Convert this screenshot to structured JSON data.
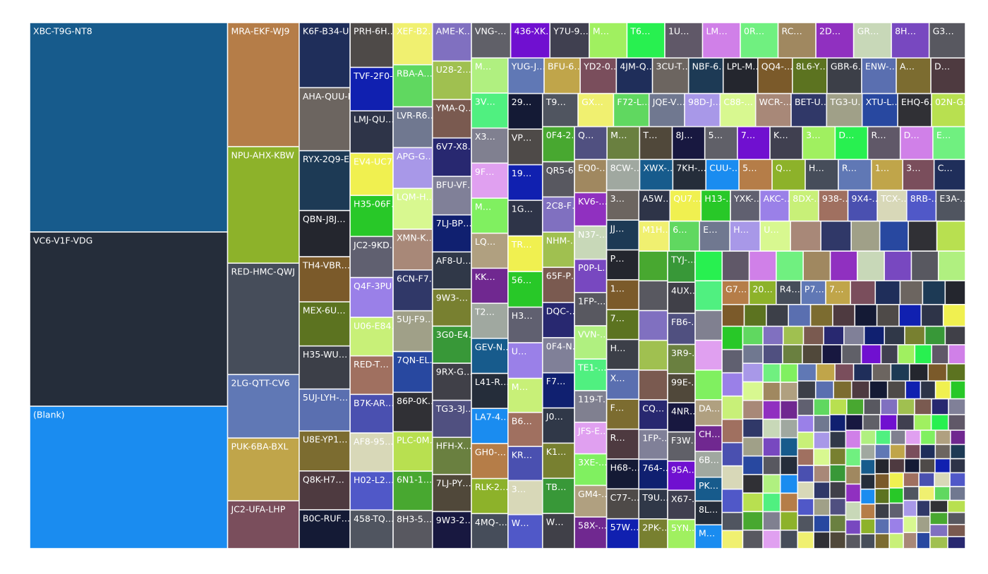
{
  "chart_data": {
    "type": "treemap",
    "categories": [
      "XBC-T9G-NT8",
      "VC6-V1F-VDG",
      "(Blank)",
      "MRA-EKF-WJ9",
      "NPU-AHX-KBW",
      "RED-HMC-QWJ",
      "2LG-QTT-CV6",
      "PUK-6BA-BXL",
      "JC2-UFA-LHP",
      "K6F-B34-UM5",
      "AHA-QUU-KD0",
      "RYX-2Q9-EDW",
      "QBN-J8J…",
      "TH4-VBR…",
      "MEX-6U…",
      "H35-WU…",
      "5UJ-LYH-…",
      "U8E-YP1…",
      "Q8K-H7…",
      "B0C-RUF…",
      "PRH-6H…",
      "TVF-2F0-…",
      "LMJ-QU…",
      "EV4-UC7…",
      "H35-06F…",
      "JC2-9KD…",
      "Q4F-3PU…",
      "U06-E84…",
      "RED-T…",
      "B7K-AR…",
      "AF8-95…",
      "H02-L2…",
      "458-TQ…",
      "XEF-B2…",
      "RBA-A…",
      "LVR-R6…",
      "APG-G…",
      "LQM-H…",
      "XMN-K…",
      "6CN-F7…",
      "5UJ-F9…",
      "7QN-EL…",
      "86P-0K…",
      "PLC-0M…",
      "6N1-1…",
      "8H3-5…",
      "AME-K…",
      "U28-2…",
      "YMA-Q…",
      "6V7-X8…",
      "BFU-VF…",
      "7LJ-BP…",
      "AF8-U…",
      "9W3-…",
      "3G0-E4…",
      "9RX-G…",
      "TG3-3J…",
      "HFH-X…",
      "7LJ-PY…",
      "9W3-2…",
      "VNG-…",
      "436-XK…",
      "Y7U-9…",
      "M…",
      "T6…",
      "1U…",
      "LM…",
      "0R…",
      "RC…",
      "2D…",
      "GR…",
      "8H…",
      "G3…",
      "M…",
      "3V…",
      "X3…",
      "9F…",
      "M…",
      "LQ…",
      "KK…",
      "T2…",
      "GEV-N…",
      "L41-R…",
      "LA7-4…",
      "GH0-…",
      "RLK-2…",
      "4MQ-…",
      "YUG-J…",
      "BFU-6…",
      "YD2-0…",
      "4JM-Q…",
      "3CU-T…",
      "NBF-6…",
      "LPL-M…",
      "QQ4-…",
      "8L6-Y…",
      "GBR-6…",
      "ENW-…",
      "A…",
      "D…",
      "29…",
      "VP…",
      "19…",
      "1G…",
      "TR…",
      "56…",
      "H3…",
      "U…",
      "M…",
      "B6…",
      "KR…",
      "3…",
      "W…",
      "T9…",
      "GX…",
      "F72-L…",
      "JQE-V…",
      "98D-J…",
      "C88-…",
      "WCR-…",
      "BET-U…",
      "TG3-U…",
      "XTU-L…",
      "EHQ-6…",
      "02N-G…",
      "0F4-2…",
      "QR5-6…",
      "2C8-F…",
      "NHM-…",
      "65F-P…",
      "DQC-…",
      "0F4-N…",
      "F7…",
      "J0…",
      "K1…",
      "TB…",
      "W…",
      "Q…",
      "M…",
      "T…",
      "8J…",
      "5…",
      "7…",
      "K…",
      "3…",
      "D…",
      "R…",
      "D…",
      "E…",
      "EQ0-…",
      "KV6-…",
      "N37-…",
      "P0P-L…",
      "1FP-…",
      "VVN-…",
      "TE1-…",
      "119-T…",
      "JFS-E…",
      "3XE-…",
      "GM4-…",
      "58X-…",
      "8CW-…",
      "XWX-…",
      "7KH-…",
      "CUU-…",
      "5…",
      "Q…",
      "H…",
      "R…",
      "1…",
      "3…",
      "C…",
      "3…",
      "JJ…",
      "P…",
      "1…",
      "7…",
      "H…",
      "X…",
      "F…",
      "R…",
      "H68-…",
      "C77-…",
      "57W…",
      "A5W…",
      "QU7…",
      "H13-…",
      "YXK-…",
      "AKC-…",
      "8DX-…",
      "938-…",
      "9X4-…",
      "TCX-…",
      "8RB-…",
      "E3A-…",
      "M1H…",
      "6…",
      "E…",
      "H…",
      "U…",
      null,
      null,
      null,
      null,
      null,
      null,
      null,
      null,
      null,
      null,
      null,
      "CQ…",
      "1FP-…",
      "764-…",
      "T9U…",
      "2PK-…",
      "TYJ-…",
      "4UX…",
      "FB6-…",
      "3R9-…",
      "99E-…",
      "4NR…",
      "F3W…",
      "95A…",
      "X67-…",
      "5YN…",
      null,
      null,
      null,
      null,
      null,
      null,
      null,
      null,
      null,
      null,
      null,
      null,
      null,
      null,
      "DA…",
      "CH…",
      "6B…",
      "PK…",
      "8L…",
      "M…",
      "G7…",
      "20…",
      "R4…",
      "P7…",
      "7…",
      null,
      null,
      null,
      null,
      null,
      null,
      null,
      null,
      null,
      null,
      null,
      null,
      null,
      null,
      null,
      null,
      null,
      null,
      null,
      null,
      null,
      null,
      null,
      null,
      null,
      null,
      null,
      null,
      null,
      null,
      null,
      null,
      null,
      null,
      null,
      null,
      null,
      null,
      null,
      null,
      null,
      null,
      null,
      null,
      null,
      null,
      null,
      null,
      null,
      null,
      null,
      null,
      null,
      null,
      null,
      null,
      null,
      null,
      null,
      null,
      null,
      null,
      null,
      null,
      null,
      null,
      null,
      null,
      null,
      null,
      null,
      null,
      null,
      null,
      null,
      null,
      null,
      null,
      null,
      null,
      null,
      null,
      null,
      null,
      null,
      null,
      null,
      null,
      null,
      null,
      null,
      null,
      null,
      null,
      null,
      null,
      null,
      null,
      null,
      null,
      null,
      null,
      null,
      null,
      null,
      null,
      null,
      null,
      null,
      null,
      null,
      null,
      null,
      null,
      null,
      null,
      null,
      null,
      null,
      null,
      null,
      null,
      null,
      null,
      null,
      null,
      null,
      null,
      null,
      null,
      null,
      null,
      null,
      null,
      null,
      null,
      null,
      null,
      null,
      null,
      null,
      null,
      null,
      null,
      null,
      null,
      null,
      null,
      null,
      null,
      null,
      null,
      null,
      null,
      null,
      null,
      null,
      null,
      null,
      null,
      null,
      null,
      null,
      null,
      null,
      null,
      null,
      null,
      null,
      null,
      null,
      null,
      null,
      null,
      null,
      null,
      null,
      null,
      null,
      null,
      null,
      null,
      null,
      null,
      null,
      null,
      null,
      null,
      null,
      null,
      null,
      null,
      null,
      null,
      null,
      null,
      null,
      null,
      null,
      null,
      null,
      null,
      null,
      null
    ],
    "values": [
      775,
      645,
      527,
      166,
      156,
      149,
      85,
      84,
      64,
      62,
      60,
      57,
      44,
      43,
      42,
      41,
      40,
      38,
      37,
      37,
      36,
      35,
      34,
      34,
      33,
      33,
      32,
      31,
      31,
      31,
      31,
      31,
      31,
      31,
      31,
      30,
      30,
      30,
      30,
      30,
      30,
      30,
      29,
      29,
      29,
      28,
      28,
      28,
      28,
      28,
      28,
      27,
      27,
      27,
      27,
      27,
      27,
      27,
      27,
      27,
      26,
      26,
      26,
      25,
      25,
      25,
      25,
      25,
      25,
      25,
      25,
      25,
      24,
      24,
      24,
      24,
      24,
      24,
      24,
      24,
      24,
      24,
      24,
      24,
      24,
      24,
      24,
      24,
      24,
      24,
      24,
      24,
      23,
      23,
      23,
      23,
      23,
      23,
      23,
      23,
      23,
      23,
      23,
      23,
      23,
      23,
      23,
      23,
      22,
      22,
      22,
      22,
      22,
      22,
      22,
      22,
      22,
      22,
      22,
      22,
      22,
      22,
      22,
      21,
      21,
      21,
      21,
      21,
      21,
      21,
      21,
      21,
      21,
      21,
      21,
      21,
      21,
      20,
      20,
      20,
      20,
      20,
      20,
      20,
      20,
      20,
      20,
      20,
      20,
      20,
      20,
      20,
      20,
      20,
      20,
      19,
      19,
      19,
      19,
      19,
      19,
      19,
      19,
      19,
      19,
      19,
      19,
      19,
      19,
      18,
      18,
      18,
      18,
      18,
      18,
      18,
      18,
      18,
      18,
      18,
      18,
      18,
      18,
      18,
      18,
      18,
      17,
      17,
      17,
      17,
      17,
      17,
      17,
      17,
      17,
      17,
      17,
      17,
      17,
      17,
      17,
      17,
      16,
      16,
      16,
      16,
      16,
      16,
      16,
      16,
      16,
      16,
      16,
      16,
      16,
      16,
      16,
      16,
      16,
      15,
      15,
      15,
      15,
      15,
      15,
      15,
      15,
      15,
      15,
      15,
      15,
      15,
      15,
      15,
      15,
      15,
      15,
      15,
      15,
      15,
      13,
      13,
      13,
      12,
      12,
      12,
      12,
      12,
      11,
      11,
      11,
      11,
      11,
      10,
      10,
      9,
      9,
      9,
      9,
      9,
      9,
      9,
      9,
      9,
      9,
      9,
      9,
      9,
      9,
      9,
      9,
      9,
      9,
      9,
      9,
      7,
      7,
      7,
      7,
      7,
      7,
      7,
      7,
      7,
      7,
      7,
      7,
      7,
      7,
      7,
      7,
      7,
      7,
      7,
      7,
      7,
      7,
      7,
      7,
      7,
      7,
      7,
      7,
      7,
      7,
      6,
      6,
      6,
      6,
      6,
      6,
      6,
      6,
      6,
      6,
      6,
      6,
      6,
      6,
      6,
      6,
      6,
      6,
      6,
      6,
      6,
      6,
      6,
      6,
      6,
      6,
      6,
      6,
      6,
      6,
      6,
      6,
      6,
      6,
      6,
      6,
      6,
      6,
      6,
      6,
      5,
      5,
      5,
      5,
      5,
      5,
      5,
      5,
      5,
      5,
      5,
      5,
      5,
      5,
      5,
      5,
      5,
      5,
      5,
      5,
      5,
      5,
      5,
      5,
      5,
      5,
      5,
      5,
      5,
      5,
      5,
      5,
      5,
      5,
      5,
      5,
      5,
      5,
      5,
      5,
      5,
      5,
      5,
      5,
      5,
      5,
      5,
      5,
      5,
      5,
      4,
      4,
      4,
      4,
      4,
      4,
      4,
      4,
      4,
      4,
      4,
      4,
      4,
      4,
      4,
      4,
      4,
      4,
      4,
      4,
      4,
      4,
      4,
      4,
      4,
      4,
      4,
      4,
      4,
      4,
      4,
      4,
      4,
      4,
      4,
      4,
      4,
      4,
      4,
      4,
      4,
      4,
      4,
      4,
      4,
      4,
      4,
      4,
      4,
      4,
      4,
      4,
      4,
      4,
      4,
      4,
      4,
      4,
      4,
      4
    ],
    "palette": [
      "#175b8c",
      "#252d3a",
      "#1a8cf0",
      "#b57d48",
      "#8db22a",
      "#464d5a",
      "#6078b5",
      "#c0a54a",
      "#7a4e5c",
      "#1f2e5a",
      "#6c6560",
      "#1d3a55",
      "#24262e",
      "#7b5a2a",
      "#5c7320",
      "#3c3f48",
      "#5a6fb0",
      "#7c6c30",
      "#4e3a40",
      "#141a35",
      "#4e4a48",
      "#1020b0",
      "#2e3448",
      "#f0f050",
      "#28c828",
      "#606070",
      "#9a80e8",
      "#c8f078",
      "#a07060",
      "#4a50b0",
      "#d8d8b8",
      "#5058c8",
      "#505560",
      "#f0f070",
      "#60d860",
      "#707890",
      "#a898e8",
      "#d8f890",
      "#a88878",
      "#303868",
      "#a0a088",
      "#2848a0",
      "#303035",
      "#b8e050",
      "#48a830",
      "#585860",
      "#8070c0",
      "#a0c050",
      "#7a5a50",
      "#282870",
      "#808098",
      "#102070",
      "#303848",
      "#788030",
      "#389838",
      "#404048",
      "#505080",
      "#6a8040",
      "#50483a",
      "#181840",
      "#606068",
      "#7010d0",
      "#404050",
      "#a0f060",
      "#28f050",
      "#605868",
      "#d080e8",
      "#70f080",
      "#a08860",
      "#9030c0",
      "#c8d8b8",
      "#7848c0",
      "#585860",
      "#b0f080",
      "#50f080",
      "#808090",
      "#e0a0f0",
      "#80f060",
      "#b0a080",
      "#702890",
      "#a0a8a0"
    ]
  }
}
